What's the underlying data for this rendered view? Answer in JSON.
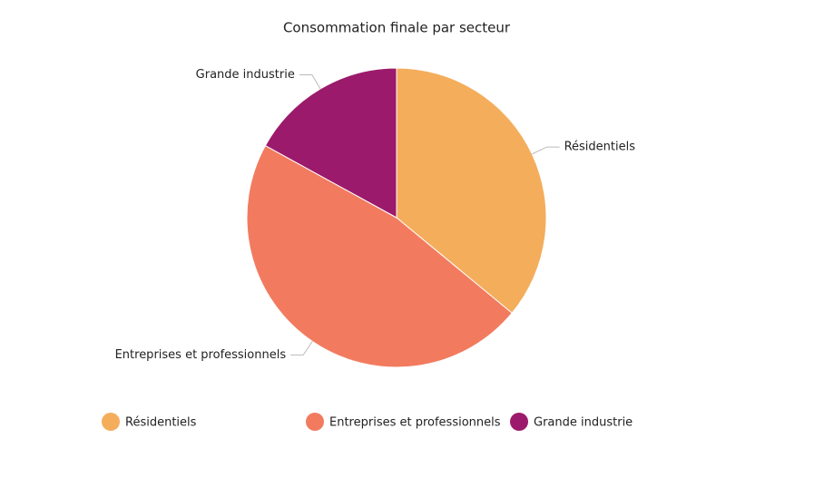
{
  "chart_data": {
    "type": "pie",
    "title": "Consommation finale par secteur",
    "categories": [
      "Résidentiels",
      "Entreprises et professionnels",
      "Grande industrie"
    ],
    "values": [
      36,
      47,
      17
    ],
    "colors": [
      "#f4ad5b",
      "#f27b5f",
      "#9c1a6b"
    ]
  }
}
